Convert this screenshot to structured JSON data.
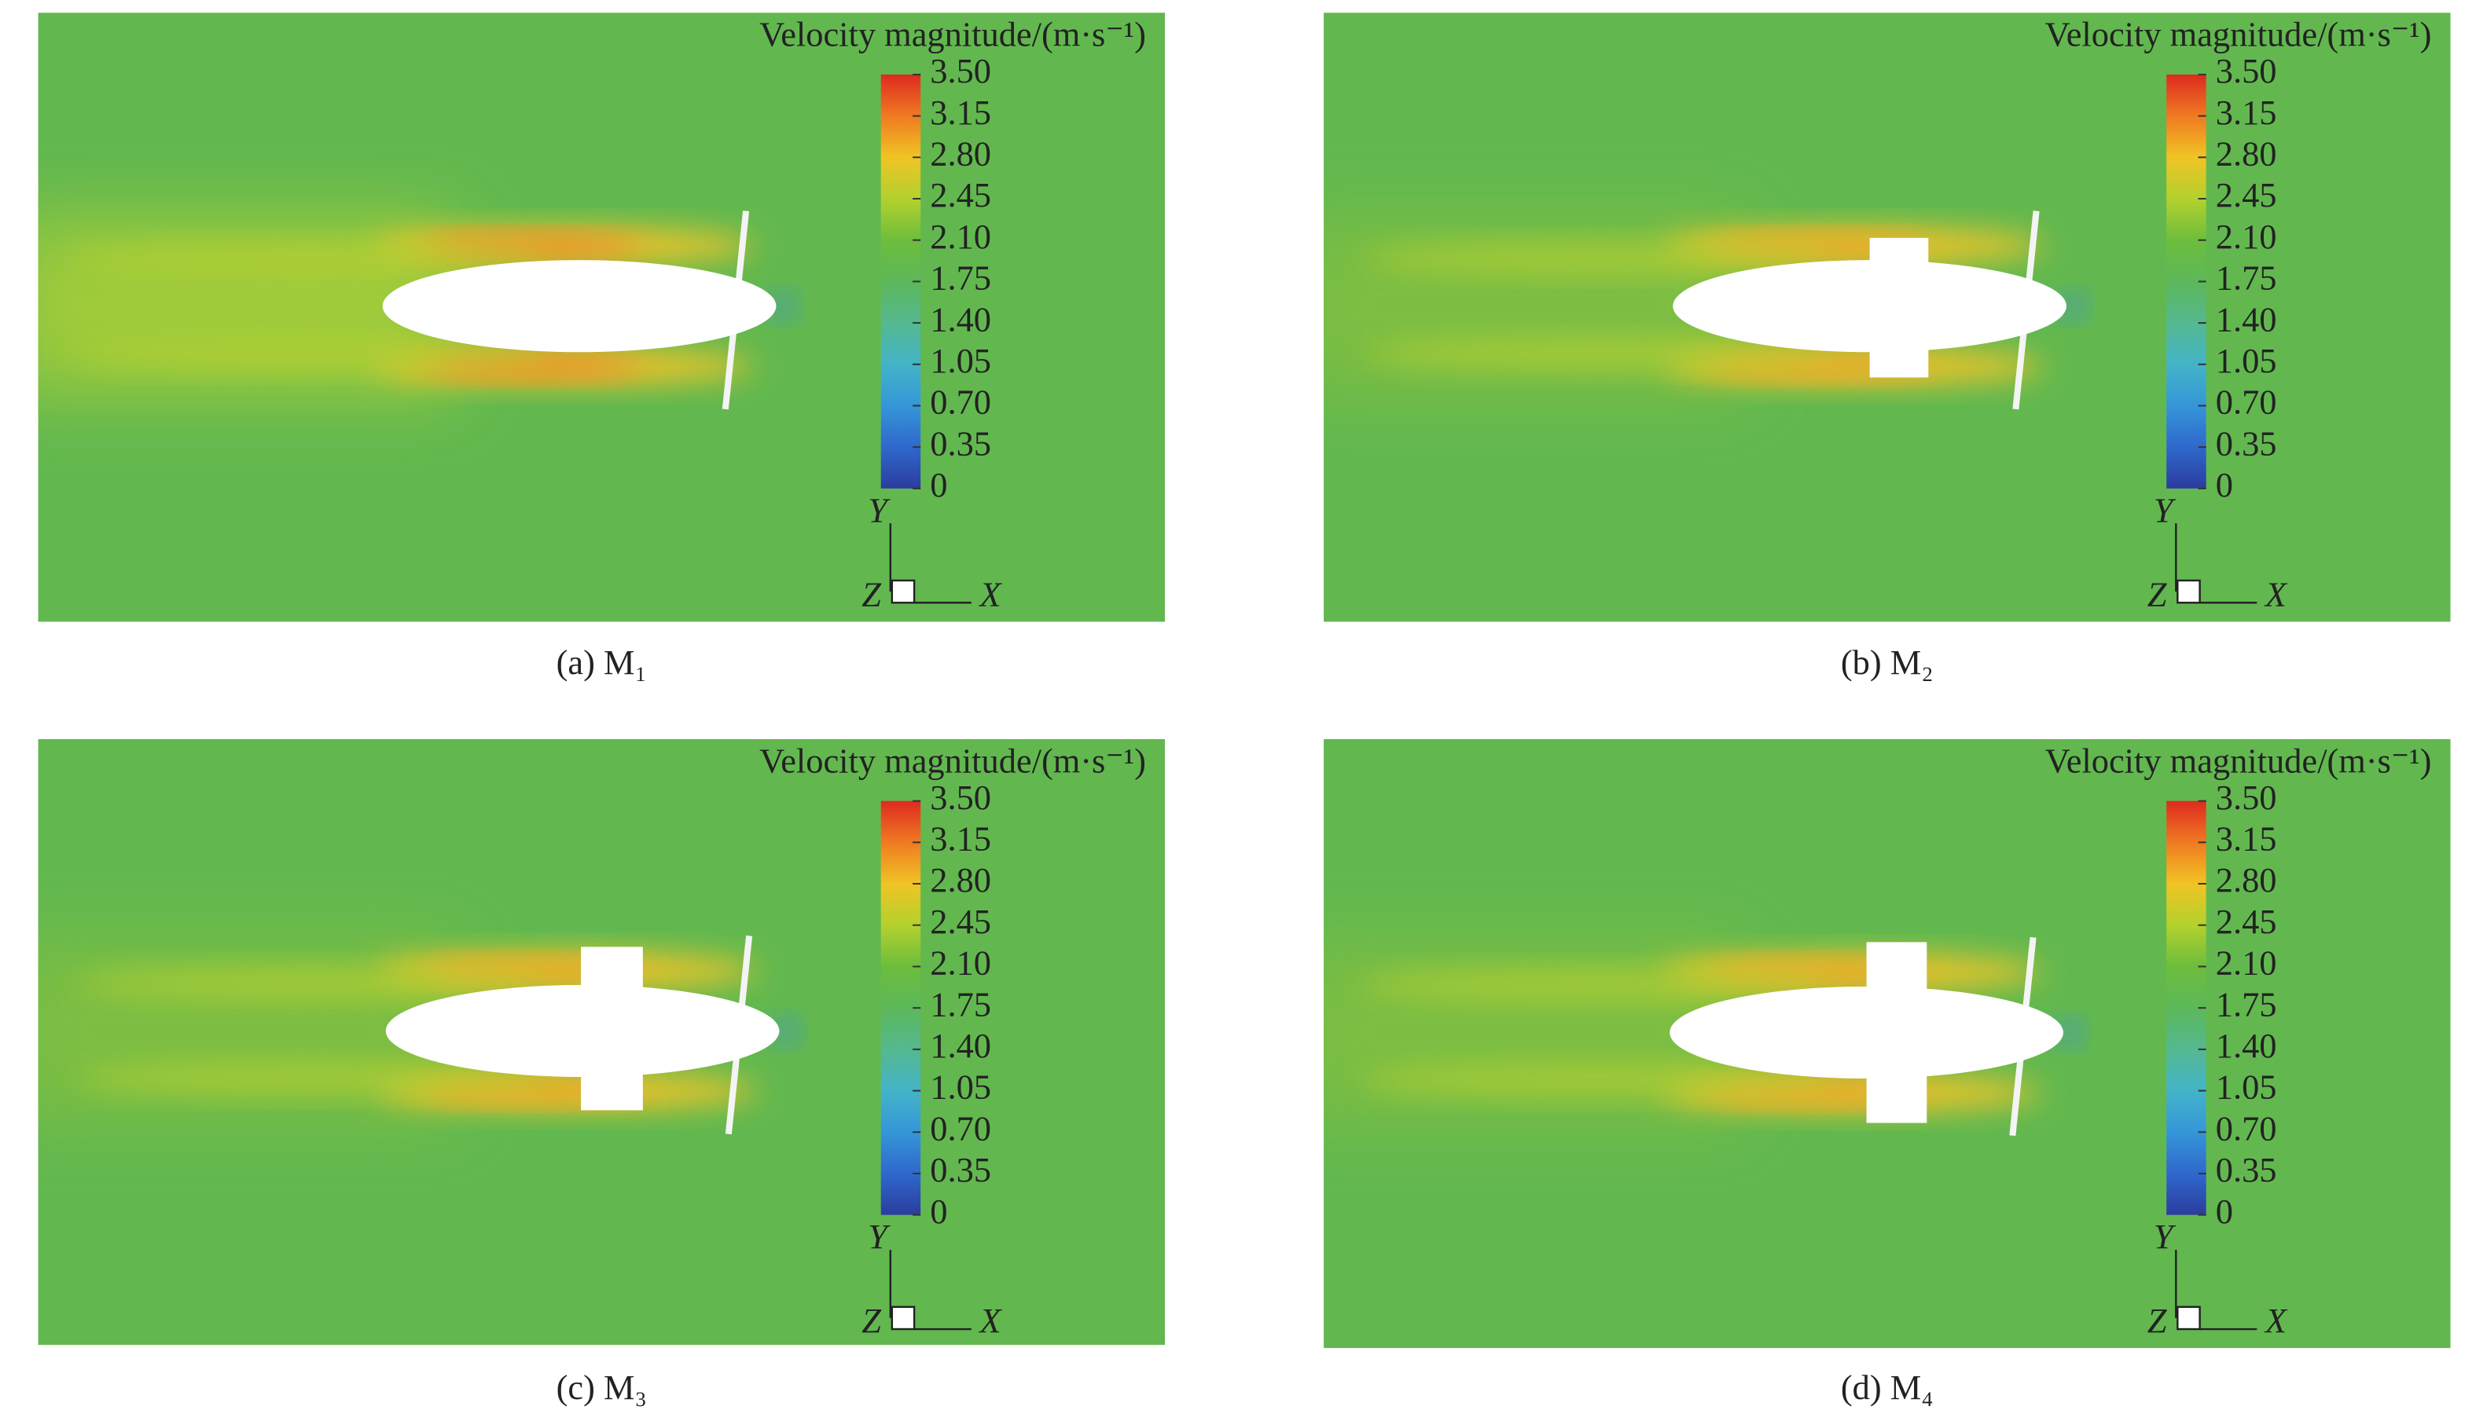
{
  "panels": [
    {
      "legend_title": "Velocity magnitude/(m·s⁻¹)",
      "colorbar": {
        "lim": [
          0,
          3.5
        ],
        "ticks": [
          {
            "value": 3.5,
            "label": "3.50"
          },
          3.15,
          {
            "value": 2.8,
            "label": "2.80"
          },
          2.45,
          {
            "value": 2.1,
            "label": "2.10"
          },
          1.75,
          {
            "value": 1.4,
            "label": "1.40"
          },
          1.05,
          {
            "value": 0.7,
            "label": "0.70"
          },
          0.35,
          0
        ]
      },
      "axes": {
        "y": "Y",
        "z": "Z",
        "x": "X"
      },
      "caption": "(a) M₁"
    },
    {
      "legend_title": "Velocity magnitude/(m·s⁻¹)",
      "colorbar": {
        "lim": [
          0,
          3.5
        ],
        "ticks": [
          {
            "value": 3.5,
            "label": "3.50"
          },
          3.15,
          {
            "value": 2.8,
            "label": "2.80"
          },
          2.45,
          {
            "value": 2.1,
            "label": "2.10"
          },
          1.75,
          {
            "value": 1.4,
            "label": "1.40"
          },
          1.05,
          {
            "value": 0.7,
            "label": "0.70"
          },
          0.35,
          0
        ]
      },
      "axes": {
        "y": "Y",
        "z": "Z",
        "x": "X"
      },
      "caption": "(b) M₂"
    },
    {
      "legend_title": "Velocity magnitude/(m·s⁻¹)",
      "colorbar": {
        "lim": [
          0,
          3.5
        ],
        "ticks": [
          {
            "value": 3.5,
            "label": "3.50"
          },
          3.15,
          {
            "value": 2.8,
            "label": "2.80"
          },
          2.45,
          {
            "value": 2.1,
            "label": "2.10"
          },
          1.75,
          {
            "value": 1.4,
            "label": "1.40"
          },
          1.05,
          {
            "value": 0.7,
            "label": "0.70"
          },
          0.35,
          0
        ]
      },
      "axes": {
        "y": "Y",
        "z": "Z",
        "x": "X"
      },
      "caption": "(c) M₃"
    },
    {
      "legend_title": "Velocity magnitude/(m·s⁻¹)",
      "colorbar": {
        "lim": [
          0,
          3.5
        ],
        "ticks": [
          {
            "value": 3.5,
            "label": "3.50"
          },
          3.15,
          {
            "value": 2.8,
            "label": "2.80"
          },
          2.45,
          {
            "value": 2.1,
            "label": "2.10"
          },
          1.75,
          {
            "value": 1.4,
            "label": "1.40"
          },
          1.05,
          {
            "value": 0.7,
            "label": "0.70"
          },
          0.35,
          0
        ]
      },
      "axes": {
        "y": "Y",
        "z": "Z",
        "x": "X"
      },
      "caption": "(d) M₄"
    }
  ]
}
